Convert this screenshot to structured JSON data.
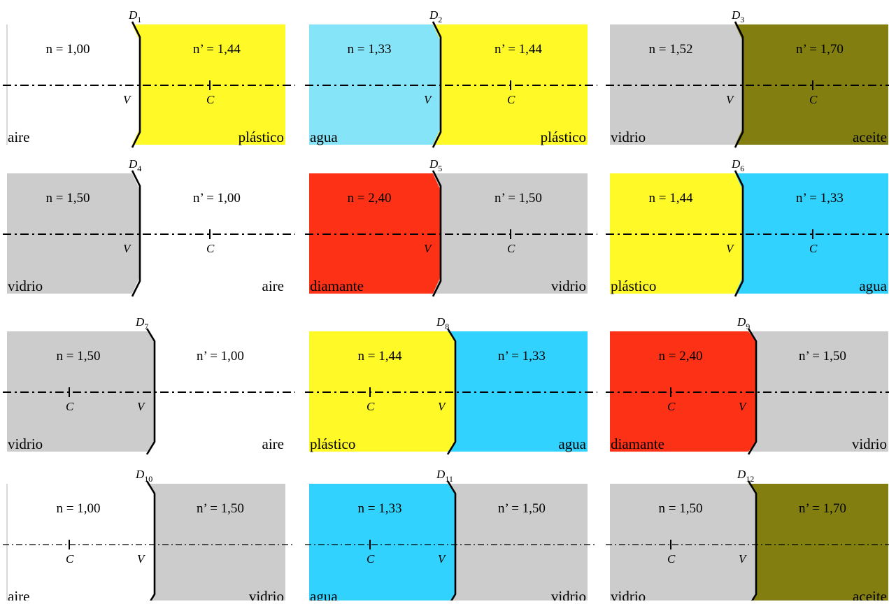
{
  "colors": {
    "aire": "#ffffff",
    "agua_light": "#86e4f9",
    "agua": "#31d2fe",
    "plastico": "#fff928",
    "vidrio": "#cccccc",
    "aceite": "#827f10",
    "diamante": "#fd3115",
    "line": "#000000"
  },
  "panels": [
    {
      "id": "D1",
      "d_main": "D",
      "d_sub": "1",
      "n_left": "n = 1,00",
      "n_right": "n’ = 1,44",
      "medium_left": "aire",
      "medium_right": "plástico",
      "left_color": "aire",
      "right_color": "plastico",
      "curvature": "convex",
      "c_side": "right"
    },
    {
      "id": "D2",
      "d_main": "D",
      "d_sub": "2",
      "n_left": "n = 1,33",
      "n_right": "n’ = 1,44",
      "medium_left": "agua",
      "medium_right": "plástico",
      "left_color": "agua_light",
      "right_color": "plastico",
      "curvature": "convex",
      "c_side": "right"
    },
    {
      "id": "D3",
      "d_main": "D",
      "d_sub": "3",
      "n_left": "n = 1,52",
      "n_right": "n’ = 1,70",
      "medium_left": "vidrio",
      "medium_right": "aceite",
      "left_color": "vidrio",
      "right_color": "aceite",
      "curvature": "convex",
      "c_side": "right"
    },
    {
      "id": "D4",
      "d_main": "D",
      "d_sub": "4",
      "n_left": "n = 1,50",
      "n_right": "n’ = 1,00",
      "medium_left": "vidrio",
      "medium_right": "aire",
      "left_color": "vidrio",
      "right_color": "aire",
      "curvature": "convex",
      "c_side": "right"
    },
    {
      "id": "D5",
      "d_main": "D",
      "d_sub": "5",
      "n_left": "n = 2,40",
      "n_right": "n’ = 1,50",
      "medium_left": "diamante",
      "medium_right": "vidrio",
      "left_color": "diamante",
      "right_color": "vidrio",
      "curvature": "convex",
      "c_side": "right"
    },
    {
      "id": "D6",
      "d_main": "D",
      "d_sub": "6",
      "n_left": "n = 1,44",
      "n_right": "n’ = 1,33",
      "medium_left": "plástico",
      "medium_right": "agua",
      "left_color": "plastico",
      "right_color": "agua",
      "curvature": "convex",
      "c_side": "right"
    },
    {
      "id": "D7",
      "d_main": "D",
      "d_sub": "7",
      "n_left": "n = 1,50",
      "n_right": "n’ = 1,00",
      "medium_left": "vidrio",
      "medium_right": "aire",
      "left_color": "vidrio",
      "right_color": "aire",
      "curvature": "concave",
      "c_side": "left"
    },
    {
      "id": "D8",
      "d_main": "D",
      "d_sub": "8",
      "n_left": "n = 1,44",
      "n_right": "n’ = 1,33",
      "medium_left": "plástico",
      "medium_right": "agua",
      "left_color": "plastico",
      "right_color": "agua",
      "curvature": "concave",
      "c_side": "left"
    },
    {
      "id": "D9",
      "d_main": "D",
      "d_sub": "9",
      "n_left": "n = 2,40",
      "n_right": "n’ = 1,50",
      "medium_left": "diamante",
      "medium_right": "vidrio",
      "left_color": "diamante",
      "right_color": "vidrio",
      "curvature": "concave",
      "c_side": "left"
    },
    {
      "id": "D10",
      "d_main": "D",
      "d_sub": "10",
      "n_left": "n = 1,00",
      "n_right": "n’ = 1,50",
      "medium_left": "aire",
      "medium_right": "vidrio",
      "left_color": "aire",
      "right_color": "vidrio",
      "curvature": "concave",
      "c_side": "left"
    },
    {
      "id": "D11",
      "d_main": "D",
      "d_sub": "11",
      "n_left": "n = 1,33",
      "n_right": "n’ = 1,50",
      "medium_left": "agua",
      "medium_right": "vidrio",
      "left_color": "agua",
      "right_color": "vidrio",
      "curvature": "concave",
      "c_side": "left"
    },
    {
      "id": "D12",
      "d_main": "D",
      "d_sub": "12",
      "n_left": "n = 1,50",
      "n_right": "n’ = 1,70",
      "medium_left": "vidrio",
      "medium_right": "aceite",
      "left_color": "vidrio",
      "right_color": "aceite",
      "curvature": "concave",
      "c_side": "left"
    }
  ],
  "points": {
    "vertex": "V",
    "center": "C"
  }
}
